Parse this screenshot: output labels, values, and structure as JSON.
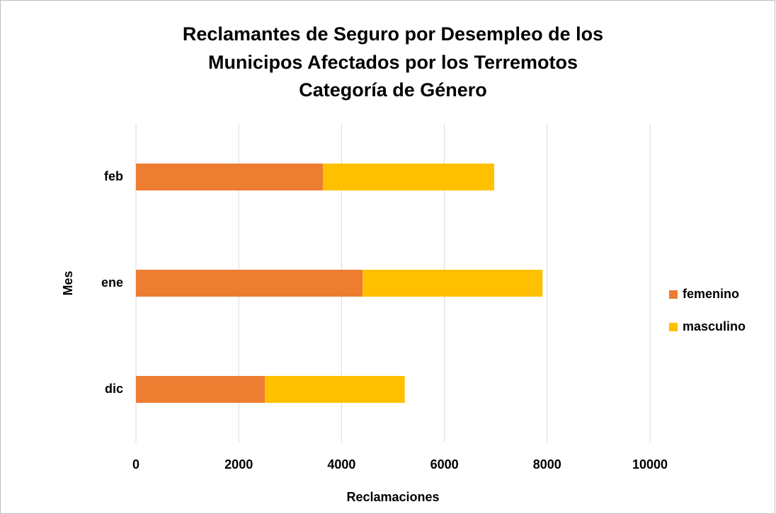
{
  "chart_data": {
    "type": "bar",
    "orientation": "horizontal",
    "stacked": true,
    "title": [
      "Reclamantes de Seguro por Desempleo de los",
      "Municipos Afectados por los Terremotos",
      "Categoría de Género"
    ],
    "x_label": "Reclamaciones",
    "y_label": "Mes",
    "categories": [
      "dic",
      "ene",
      "feb"
    ],
    "series": [
      {
        "name": "femenino",
        "color": "#ed7d31",
        "values": [
          2510,
          4410,
          3640
        ]
      },
      {
        "name": "masculino",
        "color": "#ffc000",
        "values": [
          2720,
          3500,
          3330
        ]
      }
    ],
    "xlim": [
      0,
      10000
    ],
    "xticks": [
      0,
      2000,
      4000,
      6000,
      8000,
      10000
    ],
    "grid": true,
    "legend": "right"
  }
}
